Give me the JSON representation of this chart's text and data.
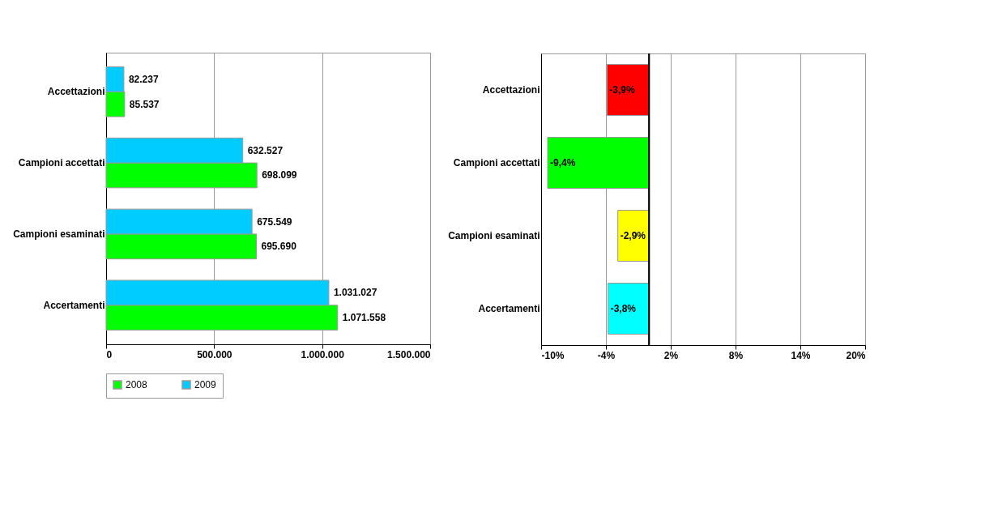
{
  "chart_data": [
    {
      "type": "bar",
      "orientation": "horizontal",
      "categories": [
        "Accettazioni",
        "Campioni accettati",
        "Campioni esaminati",
        "Accertamenti"
      ],
      "series": [
        {
          "name": "2008",
          "color": "#00ff00",
          "values": [
            85537,
            698099,
            695690,
            1071558
          ],
          "value_labels": [
            "85.537",
            "698.099",
            "695.690",
            "1.071.558"
          ]
        },
        {
          "name": "2009",
          "color": "#00ccff",
          "values": [
            82237,
            632527,
            675549,
            1031027
          ],
          "value_labels": [
            "82.237",
            "632.527",
            "675.549",
            "1.031.027"
          ]
        }
      ],
      "xlim": [
        0,
        1500000
      ],
      "xticks": [
        0,
        {
          "value": 500000,
          "label": "500.000"
        },
        {
          "value": 1000000,
          "label": "1.000.000"
        },
        {
          "value": 1500000,
          "label": "1.500.000"
        }
      ],
      "grid": "x",
      "legend": "bottom"
    },
    {
      "type": "bar",
      "orientation": "horizontal",
      "categories": [
        "Accettazioni",
        "Campioni accettati",
        "Campioni esaminati",
        "Accertamenti"
      ],
      "values": [
        -3.9,
        -9.4,
        -2.9,
        -3.8
      ],
      "colors": [
        "#ff0000",
        "#00ff00",
        "#ffff00",
        "#00ffff"
      ],
      "value_labels": [
        "-3,9%",
        "-9,4%",
        "-2,9%",
        "-3,8%"
      ],
      "xlim": [
        -10,
        20
      ],
      "xticks": [
        {
          "value": -10,
          "label": "-10%"
        },
        {
          "value": -4,
          "label": "-4%"
        },
        {
          "value": 2,
          "label": "2%"
        },
        {
          "value": 8,
          "label": "8%"
        },
        {
          "value": 14,
          "label": "14%"
        },
        {
          "value": 20,
          "label": "20%"
        }
      ],
      "ref_lines": [
        {
          "axis": "x",
          "value": 0
        }
      ],
      "grid": "x"
    }
  ]
}
